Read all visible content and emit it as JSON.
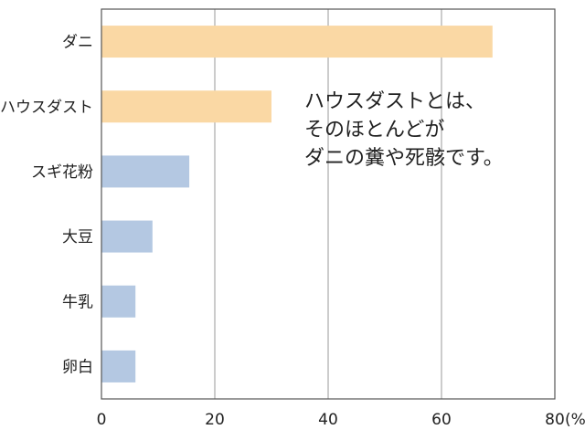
{
  "chart_data": {
    "type": "bar",
    "orientation": "horizontal",
    "categories": [
      "ダニ",
      "ハウスダスト",
      "スギ花粉",
      "大豆",
      "牛乳",
      "卵白"
    ],
    "values": [
      69,
      30,
      15.5,
      9,
      6,
      6
    ],
    "bar_colors": [
      "#FAD8A4",
      "#FAD8A4",
      "#B4C8E2",
      "#B4C8E2",
      "#B4C8E2",
      "#B4C8E2"
    ],
    "xlim": [
      0,
      80
    ],
    "xticks": [
      0,
      20,
      40,
      60,
      80
    ],
    "x_unit": "(%)",
    "grid": "vertical",
    "title": "",
    "xlabel": "",
    "ylabel": "",
    "annotation": [
      "ハウスダストとは、",
      "そのほとんどが",
      "ダニの糞や死骸です。"
    ]
  }
}
